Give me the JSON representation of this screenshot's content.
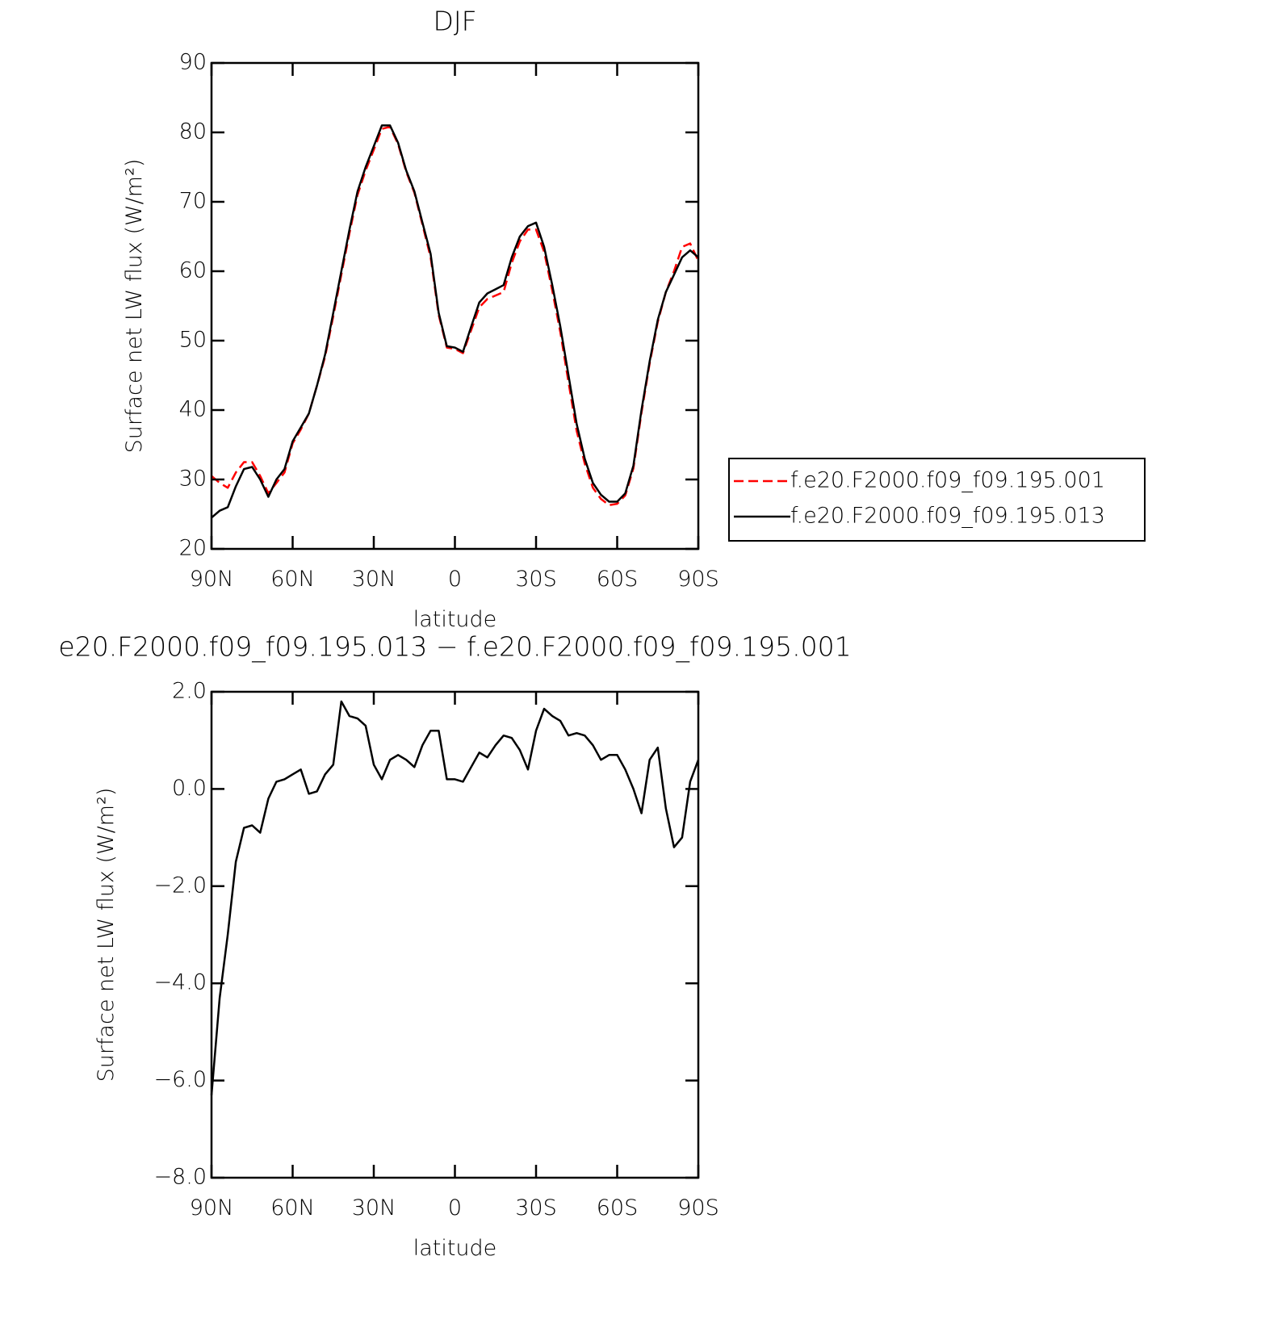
{
  "chart_data": [
    {
      "type": "line",
      "title": "DJF",
      "xlabel": "latitude",
      "ylabel": "Surface net LW flux (W/m²)",
      "x": [
        90,
        87,
        84,
        81,
        78,
        75,
        72,
        69,
        66,
        63,
        60,
        57,
        54,
        51,
        48,
        45,
        42,
        39,
        36,
        33,
        30,
        27,
        24,
        21,
        18,
        15,
        12,
        9,
        6,
        3,
        0,
        -3,
        -6,
        -9,
        -12,
        -15,
        -18,
        -21,
        -24,
        -27,
        -30,
        -33,
        -36,
        -39,
        -42,
        -45,
        -48,
        -51,
        -54,
        -57,
        -60,
        -63,
        -66,
        -69,
        -72,
        -75,
        -78,
        -81,
        -84,
        -87,
        -90
      ],
      "series": [
        {
          "name": "f.e20.F2000.f09_f09.195.001",
          "color": "#ff0000",
          "dash": true,
          "values": [
            30.5,
            29.5,
            28.8,
            31,
            32.5,
            32.5,
            30.5,
            28,
            29.5,
            31,
            35.2,
            37.2,
            39.5,
            43.5,
            47.7,
            53.5,
            59.5,
            65.5,
            71,
            74.5,
            77.5,
            80.5,
            80.8,
            78.3,
            74.3,
            71.3,
            66.7,
            62,
            53.7,
            49,
            48.8,
            48.2,
            51.5,
            54.8,
            56,
            56.5,
            57,
            61.2,
            64.3,
            66,
            66,
            62.8,
            57.2,
            51.2,
            44,
            37,
            32.3,
            28.8,
            27.2,
            26.3,
            26.5,
            27.7,
            31.6,
            39.6,
            46.7,
            52.7,
            57,
            60,
            63.5,
            64,
            61.5
          ]
        },
        {
          "name": "f.e20.F2000.f09_f09.195.013",
          "color": "#000000",
          "dash": false,
          "values": [
            24.5,
            25.5,
            26,
            29,
            31.5,
            31.8,
            30,
            27.5,
            30,
            31.5,
            35.5,
            37.5,
            39.5,
            43.5,
            48,
            54,
            60,
            66,
            71.5,
            75,
            78,
            81,
            81,
            78.5,
            74.5,
            71.5,
            67,
            62.5,
            54,
            49.2,
            49,
            48.4,
            52,
            55.5,
            56.8,
            57.4,
            58,
            62,
            65,
            66.5,
            67,
            63.5,
            58,
            52,
            45,
            38,
            33,
            29.5,
            27.8,
            26.8,
            26.8,
            28,
            32,
            40,
            47,
            53,
            57,
            59.5,
            62,
            63,
            62
          ]
        }
      ],
      "xlim": [
        90,
        -90
      ],
      "xticks": [
        {
          "value": 90,
          "label": "90N"
        },
        {
          "value": 60,
          "label": "60N"
        },
        {
          "value": 30,
          "label": "30N"
        },
        0,
        {
          "value": -30,
          "label": "30S"
        },
        {
          "value": -60,
          "label": "60S"
        },
        {
          "value": -90,
          "label": "90S"
        }
      ],
      "ylim": [
        20,
        90
      ],
      "yticks": [
        20,
        30,
        40,
        50,
        60,
        70,
        80,
        90
      ],
      "legend": "right"
    },
    {
      "type": "line",
      "title": "e20.F2000.f09_f09.195.013 − f.e20.F2000.f09_f09.195.001",
      "xlabel": "latitude",
      "ylabel": "Surface net LW flux (W/m²)",
      "x": [
        90,
        87,
        84,
        81,
        78,
        75,
        72,
        69,
        66,
        63,
        60,
        57,
        54,
        51,
        48,
        45,
        42,
        39,
        36,
        33,
        30,
        27,
        24,
        21,
        18,
        15,
        12,
        9,
        6,
        3,
        0,
        -3,
        -6,
        -9,
        -12,
        -15,
        -18,
        -21,
        -24,
        -27,
        -30,
        -33,
        -36,
        -39,
        -42,
        -45,
        -48,
        -51,
        -54,
        -57,
        -60,
        -63,
        -66,
        -69,
        -72,
        -75,
        -78,
        -81,
        -84,
        -87,
        -90
      ],
      "series": [
        {
          "color": "#000000",
          "dash": false,
          "values": [
            -6.3,
            -4.3,
            -3.0,
            -1.5,
            -0.8,
            -0.75,
            -0.9,
            -0.2,
            0.15,
            0.2,
            0.3,
            0.4,
            -0.1,
            -0.05,
            0.3,
            0.5,
            1.8,
            1.5,
            1.45,
            1.3,
            0.5,
            0.2,
            0.6,
            0.7,
            0.6,
            0.45,
            0.9,
            1.2,
            1.2,
            0.2,
            0.2,
            0.15,
            0.45,
            0.75,
            0.65,
            0.9,
            1.1,
            1.05,
            0.8,
            0.4,
            1.2,
            1.65,
            1.5,
            1.4,
            1.1,
            1.15,
            1.1,
            0.9,
            0.6,
            0.7,
            0.7,
            0.4,
            0.0,
            -0.5,
            0.6,
            0.85,
            -0.4,
            -1.2,
            -1.0,
            0.15,
            0.6
          ]
        }
      ],
      "xlim": [
        90,
        -90
      ],
      "xticks": [
        {
          "value": 90,
          "label": "90N"
        },
        {
          "value": 60,
          "label": "60N"
        },
        {
          "value": 30,
          "label": "30N"
        },
        0,
        {
          "value": -30,
          "label": "30S"
        },
        {
          "value": -60,
          "label": "60S"
        },
        {
          "value": -90,
          "label": "90S"
        }
      ],
      "ylim": [
        -8,
        2
      ],
      "yticks": [
        {
          "value": -8,
          "label": "−8.0"
        },
        {
          "value": -6,
          "label": "−6.0"
        },
        {
          "value": -4,
          "label": "−4.0"
        },
        {
          "value": -2,
          "label": "−2.0"
        },
        {
          "value": 0,
          "label": "0.0"
        },
        {
          "value": 2,
          "label": "2.0"
        }
      ]
    }
  ]
}
